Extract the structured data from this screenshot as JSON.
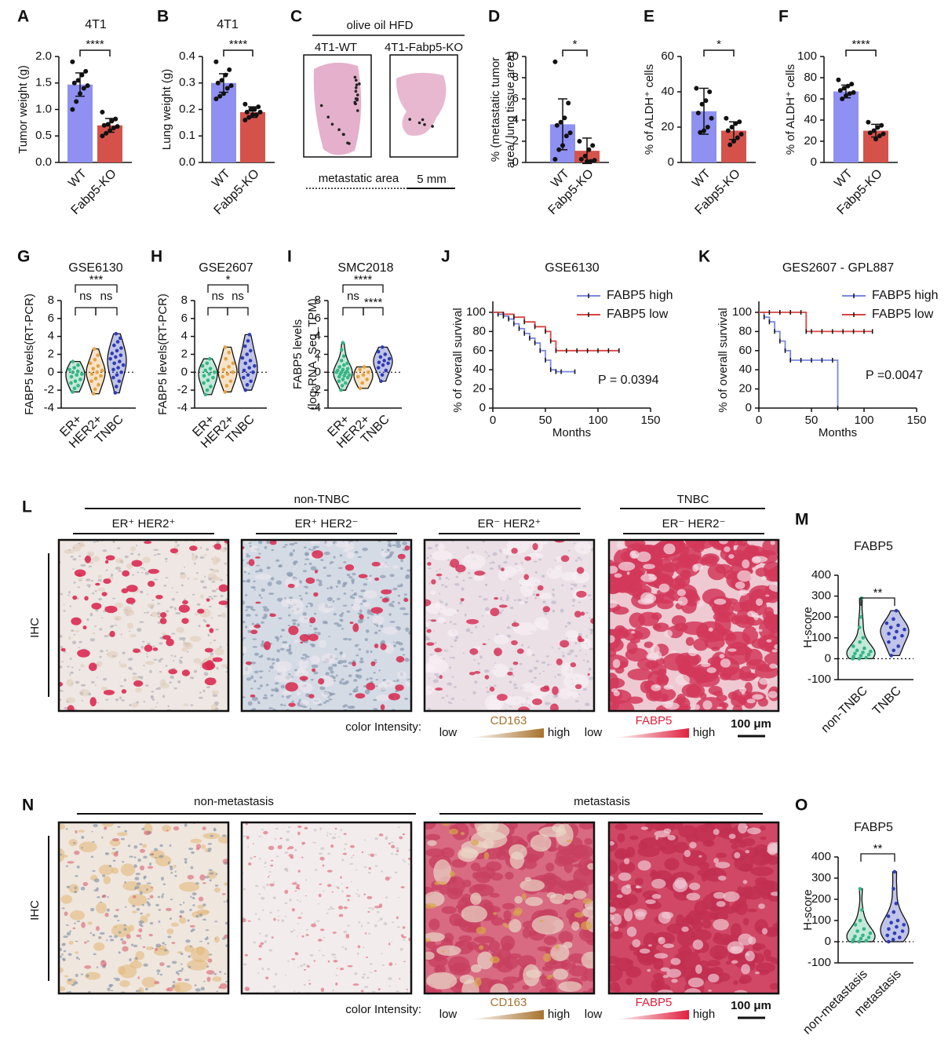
{
  "chart_data": [
    {
      "panel": "A",
      "type": "bar",
      "title": "4T1",
      "ylabel": "Tumor weight (g)",
      "categories": [
        "WT",
        "Fabp5-KO"
      ],
      "colors": [
        "#8e90f2",
        "#d5524b"
      ],
      "values": [
        1.47,
        0.7
      ],
      "errors": [
        0.22,
        0.13
      ],
      "points": [
        [
          1.9,
          1.72,
          1.65,
          1.55,
          1.5,
          1.45,
          1.4,
          1.3,
          1.15,
          1.0
        ],
        [
          0.95,
          0.82,
          0.78,
          0.72,
          0.7,
          0.68,
          0.65,
          0.6,
          0.55,
          0.5
        ]
      ],
      "ylim": [
        0,
        2
      ],
      "yticks": [
        {
          "value": 0,
          "label": "0.0"
        },
        0.5,
        {
          "value": 1,
          "label": "1.0"
        },
        1.5,
        {
          "value": 2,
          "label": "2.0"
        }
      ],
      "significance": [
        "****"
      ]
    },
    {
      "panel": "B",
      "type": "bar",
      "title": "4T1",
      "ylabel": "Lung weight (g)",
      "categories": [
        "WT",
        "Fabp5-KO"
      ],
      "colors": [
        "#8e90f2",
        "#d5524b"
      ],
      "values": [
        0.3,
        0.19
      ],
      "errors": [
        0.035,
        0.02
      ],
      "points": [
        [
          0.38,
          0.35,
          0.33,
          0.31,
          0.3,
          0.29,
          0.28,
          0.26,
          0.25,
          0.24
        ],
        [
          0.22,
          0.21,
          0.2,
          0.2,
          0.19,
          0.19,
          0.18,
          0.18,
          0.17,
          0.16
        ]
      ],
      "ylim": [
        0,
        0.4
      ],
      "yticks": [
        {
          "value": 0,
          "label": "0.0"
        },
        0.1,
        0.2,
        0.3,
        0.4
      ],
      "significance": [
        "****"
      ]
    },
    {
      "panel": "D",
      "type": "bar",
      "ylabel": [
        "% (metastatic tumor",
        "area/ lung tissue area)"
      ],
      "categories": [
        "WT",
        "Fabp5-KO"
      ],
      "colors": [
        "#8e90f2",
        "#d5524b"
      ],
      "values": [
        3.6,
        1.1
      ],
      "errors": [
        2.4,
        1.2
      ],
      "points": [
        [
          9.5,
          5.6,
          4.2,
          3.8,
          3.5,
          2.8,
          2.5,
          1.6,
          1.2,
          0.3
        ],
        [
          2.0,
          1.6,
          1.2,
          0.6,
          0.3,
          0.2,
          0.1,
          0.1
        ]
      ],
      "ylim": [
        0,
        10
      ],
      "yticks": [
        0,
        2,
        4,
        6,
        8,
        10
      ],
      "significance": [
        "*"
      ]
    },
    {
      "panel": "E",
      "type": "bar",
      "ylabel": "% of ALDH⁺ cells",
      "categories": [
        "WT",
        "Fabp5-KO"
      ],
      "colors": [
        "#8e90f2",
        "#d5524b"
      ],
      "values": [
        29,
        18
      ],
      "errors": [
        13,
        5
      ],
      "points": [
        [
          42,
          40,
          35,
          33,
          28,
          25,
          20,
          18,
          17
        ],
        [
          25,
          23,
          22,
          20,
          18,
          16,
          14,
          12,
          10
        ]
      ],
      "ylim": [
        0,
        60
      ],
      "yticks": [
        0,
        20,
        40,
        60
      ],
      "significance": [
        "*"
      ]
    },
    {
      "panel": "F",
      "type": "bar",
      "ylabel": "% of ALDH⁺ cells",
      "categories": [
        "WT",
        "Fabp5-KO"
      ],
      "colors": [
        "#8e90f2",
        "#d5524b"
      ],
      "values": [
        67,
        30
      ],
      "errors": [
        6,
        6
      ],
      "points": [
        [
          78,
          74,
          72,
          70,
          68,
          66,
          65,
          63,
          60
        ],
        [
          38,
          35,
          33,
          30,
          28,
          27,
          25,
          22
        ]
      ],
      "ylim": [
        0,
        100
      ],
      "yticks": [
        0,
        20,
        40,
        60,
        80,
        100
      ],
      "significance": [
        "****"
      ]
    },
    {
      "panel": "G",
      "type": "violin",
      "title": "GSE6130",
      "ylabel": "FABP5 levels(RT-PCR)",
      "categories": [
        "ER+",
        "HER2+",
        "TNBC"
      ],
      "colors": [
        "#36b585",
        "#e3a244",
        "#2f3cb5"
      ],
      "points": [
        [
          -2.2,
          -1.8,
          -1.5,
          -1.2,
          -1,
          -0.8,
          -0.5,
          -0.3,
          -0.2,
          0,
          0.1,
          0.3,
          0.5,
          0.8,
          1.2
        ],
        [
          -2.4,
          -1.9,
          -1.4,
          -1,
          -0.7,
          -0.4,
          -0.2,
          0,
          0.2,
          0.4,
          0.7,
          1,
          1.4,
          1.9,
          2.6
        ],
        [
          -2.3,
          -1.6,
          -1,
          -0.6,
          -0.3,
          0,
          0.3,
          0.5,
          0.8,
          1,
          1.2,
          1.5,
          1.7,
          1.9,
          2.1,
          2.4,
          2.7,
          3,
          3.4,
          3.8,
          4.3
        ]
      ],
      "ylim": [
        -4,
        8
      ],
      "yticks": [
        -4,
        -2,
        0,
        2,
        4,
        6,
        8
      ],
      "refline": 0,
      "significance": [
        "***",
        "ns",
        "ns"
      ]
    },
    {
      "panel": "H",
      "type": "violin",
      "title": "GSE2607",
      "ylabel": "FABP5 levels(RT-PCR)",
      "categories": [
        "ER+",
        "HER2+",
        "TNBC"
      ],
      "colors": [
        "#36b585",
        "#e3a244",
        "#2f3cb5"
      ],
      "points": [
        [
          -2.5,
          -2,
          -1.6,
          -1.2,
          -0.9,
          -0.6,
          -0.4,
          -0.2,
          0,
          0.2,
          0.4,
          0.7,
          1,
          1.5
        ],
        [
          -2.2,
          -1.5,
          -1,
          -0.5,
          -0.2,
          0,
          0.3,
          0.6,
          1,
          1.5,
          2.2,
          2.8
        ],
        [
          -2,
          -1.4,
          -1,
          -0.6,
          -0.3,
          0,
          0.2,
          0.5,
          0.7,
          1,
          1.3,
          1.6,
          2,
          2.4,
          2.9,
          3.5,
          4.2
        ]
      ],
      "ylim": [
        -4,
        8
      ],
      "yticks": [
        -4,
        -2,
        0,
        2,
        4,
        6,
        8
      ],
      "refline": 0,
      "significance": [
        "*",
        "ns",
        "ns"
      ]
    },
    {
      "panel": "I",
      "type": "violin",
      "title": "SMC2018",
      "ylabel": [
        "FABP5 levels",
        "(log₂RNA_Seq_TPM)"
      ],
      "categories": [
        "ER+",
        "HER2+",
        "TNBC"
      ],
      "colors": [
        "#36b585",
        "#e3a244",
        "#2f3cb5"
      ],
      "points": [
        [
          -2,
          -1.5,
          -1.2,
          -1,
          -0.8,
          -0.6,
          -0.5,
          -0.4,
          -0.3,
          -0.2,
          -0.1,
          0,
          0,
          0.1,
          0.2,
          0.3,
          0.4,
          0.6,
          0.8,
          1,
          1.3,
          1.8,
          2.5,
          3.3
        ],
        [
          -1.8,
          -1.2,
          -0.8,
          -0.5,
          -0.3,
          0,
          0.3,
          0.6
        ],
        [
          -1,
          -0.3,
          0.2,
          0.5,
          0.8,
          1,
          1.1,
          1.3,
          1.5,
          1.7,
          2,
          2.3,
          2.8
        ]
      ],
      "ylim": [
        -4,
        8
      ],
      "yticks": [
        -4,
        -2,
        0,
        2,
        4,
        6,
        8
      ],
      "refline": 0,
      "significance": [
        "****",
        "ns",
        "****"
      ]
    },
    {
      "panel": "J",
      "type": "km",
      "title": "GSE6130",
      "ylabel": "% of overall survival",
      "xlabel": "Months",
      "xlim": [
        0,
        150
      ],
      "xticks": [
        0,
        50,
        100,
        150
      ],
      "ylim": [
        0,
        100
      ],
      "yticks": [
        0,
        20,
        40,
        60,
        80,
        100
      ],
      "series": [
        {
          "name": "FABP5 high",
          "color": "#7b86e0",
          "x": [
            0,
            5,
            10,
            15,
            20,
            25,
            30,
            35,
            40,
            45,
            50,
            55,
            60,
            65,
            78
          ],
          "values": [
            100,
            98,
            96,
            93,
            88,
            83,
            78,
            73,
            68,
            60,
            50,
            40,
            38,
            38,
            38
          ]
        },
        {
          "name": "FABP5 low",
          "color": "#d64545",
          "x": [
            0,
            10,
            20,
            30,
            40,
            50,
            55,
            60,
            70,
            80,
            90,
            100,
            110,
            120
          ],
          "values": [
            100,
            98,
            95,
            90,
            85,
            80,
            70,
            60,
            60,
            60,
            60,
            60,
            60,
            60
          ]
        }
      ],
      "annotation": "P = 0.0394"
    },
    {
      "panel": "K",
      "type": "km",
      "title": "GES2607 - GPL887",
      "ylabel": "% of overall survival",
      "xlabel": "Months",
      "xlim": [
        0,
        150
      ],
      "xticks": [
        0,
        50,
        100,
        150
      ],
      "ylim": [
        0,
        100
      ],
      "yticks": [
        0,
        20,
        40,
        60,
        80,
        100
      ],
      "series": [
        {
          "name": "FABP5 high",
          "color": "#7b86e0",
          "x": [
            0,
            5,
            10,
            15,
            20,
            25,
            30,
            40,
            50,
            60,
            70,
            75
          ],
          "values": [
            100,
            95,
            90,
            80,
            70,
            60,
            50,
            50,
            50,
            50,
            50,
            0
          ]
        },
        {
          "name": "FABP5 low",
          "color": "#d64545",
          "x": [
            0,
            10,
            20,
            30,
            40,
            45,
            50,
            60,
            70,
            80,
            90,
            100,
            108
          ],
          "values": [
            100,
            100,
            100,
            100,
            100,
            80,
            80,
            80,
            80,
            80,
            80,
            80,
            80
          ]
        }
      ],
      "annotation": "P =0.0047"
    },
    {
      "panel": "M",
      "type": "violin",
      "title": "FABP5",
      "ylabel": "H-score",
      "categories": [
        "non-TNBC",
        "TNBC"
      ],
      "colors": [
        "#36b585",
        "#2f3cb5"
      ],
      "points": [
        [
          0,
          0,
          5,
          10,
          15,
          20,
          25,
          30,
          35,
          40,
          50,
          60,
          80,
          100,
          150,
          200,
          290
        ],
        [
          15,
          40,
          60,
          80,
          100,
          110,
          120,
          130,
          140,
          150,
          160,
          170,
          190,
          230
        ]
      ],
      "ylim": [
        -100,
        400
      ],
      "yticks": [
        -100,
        0,
        100,
        200,
        300,
        400
      ],
      "refline": 0,
      "significance": [
        "**"
      ]
    },
    {
      "panel": "O",
      "type": "violin",
      "title": "FABP5",
      "ylabel": "H-score",
      "categories": [
        "non-metastasis",
        "metastasis"
      ],
      "colors": [
        "#36b585",
        "#2f3cb5"
      ],
      "points": [
        [
          0,
          0,
          5,
          10,
          15,
          20,
          25,
          30,
          40,
          50,
          60,
          80,
          100,
          150,
          250
        ],
        [
          0,
          10,
          20,
          30,
          40,
          50,
          60,
          70,
          80,
          90,
          100,
          120,
          140,
          180,
          250,
          330
        ]
      ],
      "ylim": [
        -100,
        400
      ],
      "yticks": [
        -100,
        0,
        100,
        200,
        300,
        400
      ],
      "refline": 0,
      "significance": [
        "**"
      ]
    }
  ],
  "image_panels": {
    "C": {
      "panel": "C",
      "title": "olive oil HFD",
      "groups": [
        "4T1-WT",
        "4T1-Fabp5-KO"
      ],
      "legend": "metastatic area",
      "scale": "5 mm"
    },
    "L": {
      "panel": "L",
      "groups": [
        "non-TNBC",
        "TNBC"
      ],
      "subgroups": [
        "ER⁺ HER2⁺",
        "ER⁺ HER2⁻",
        "ER⁻ HER2⁺",
        "ER⁻ HER2⁻"
      ],
      "row_label": "IHC",
      "intensity_label": "color Intensity:",
      "stains": [
        "CD163",
        "FABP5"
      ],
      "low": "low",
      "high": "high",
      "scale": "100 μm"
    },
    "N": {
      "panel": "N",
      "groups": [
        "non-metastasis",
        "metastasis"
      ],
      "row_label": "IHC",
      "intensity_label": "color Intensity:",
      "stains": [
        "CD163",
        "FABP5"
      ],
      "low": "low",
      "high": "high",
      "scale": "100 μm"
    }
  }
}
